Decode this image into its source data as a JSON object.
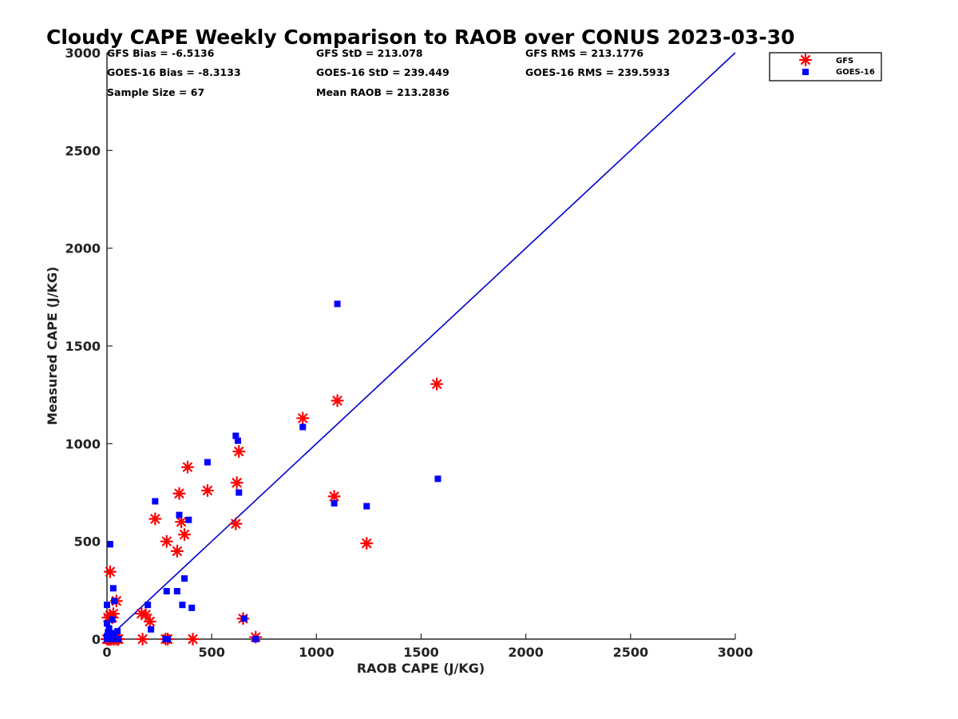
{
  "chart_data": {
    "type": "scatter",
    "title": "Cloudy CAPE Weekly Comparison to RAOB over CONUS 2023-03-30",
    "xlabel": "RAOB CAPE (J/KG)",
    "ylabel": "Measured CAPE (J/KG)",
    "xlim": [
      0,
      3000
    ],
    "ylim": [
      0,
      3000
    ],
    "xticks": [
      "0",
      "500",
      "1000",
      "1500",
      "2000",
      "2500",
      "3000"
    ],
    "yticks": [
      "0",
      "500",
      "1000",
      "1500",
      "2000",
      "2500",
      "3000"
    ],
    "grid": false,
    "legend_position": "outside-top-right",
    "stats": [
      [
        "GFS Bias = -6.5136",
        "GFS StD = 213.078",
        "GFS RMS = 213.1776"
      ],
      [
        "GOES-16 Bias = -8.3133",
        "GOES-16 StD = 239.449",
        "GOES-16 RMS = 239.5933"
      ],
      [
        "Sample Size = 67",
        "Mean RAOB = 213.2836",
        ""
      ]
    ],
    "reference_line": {
      "x": [
        0,
        3000
      ],
      "y": [
        0,
        3000
      ],
      "color": "#0000cc"
    },
    "series": [
      {
        "name": "GFS",
        "marker": "asterisk",
        "color": "#ff0000",
        "points": [
          [
            0,
            0
          ],
          [
            5,
            0
          ],
          [
            10,
            0
          ],
          [
            15,
            0
          ],
          [
            20,
            0
          ],
          [
            30,
            0
          ],
          [
            40,
            0
          ],
          [
            50,
            0
          ],
          [
            55,
            0
          ],
          [
            170,
            0
          ],
          [
            280,
            0
          ],
          [
            290,
            0
          ],
          [
            410,
            0
          ],
          [
            710,
            10
          ],
          [
            5,
            110
          ],
          [
            15,
            120
          ],
          [
            25,
            110
          ],
          [
            30,
            130
          ],
          [
            45,
            195
          ],
          [
            15,
            345
          ],
          [
            165,
            130
          ],
          [
            185,
            125
          ],
          [
            205,
            90
          ],
          [
            230,
            615
          ],
          [
            285,
            500
          ],
          [
            335,
            450
          ],
          [
            345,
            745
          ],
          [
            355,
            600
          ],
          [
            370,
            535
          ],
          [
            385,
            880
          ],
          [
            480,
            760
          ],
          [
            615,
            590
          ],
          [
            620,
            800
          ],
          [
            630,
            960
          ],
          [
            650,
            105
          ],
          [
            935,
            1130
          ],
          [
            1085,
            730
          ],
          [
            1100,
            1220
          ],
          [
            1240,
            490
          ],
          [
            1575,
            1305
          ]
        ]
      },
      {
        "name": "GOES-16",
        "marker": "square",
        "color": "#0000ff",
        "points": [
          [
            0,
            0
          ],
          [
            5,
            0
          ],
          [
            10,
            0
          ],
          [
            15,
            0
          ],
          [
            25,
            0
          ],
          [
            35,
            0
          ],
          [
            45,
            0
          ],
          [
            55,
            0
          ],
          [
            280,
            0
          ],
          [
            290,
            0
          ],
          [
            710,
            0
          ],
          [
            0,
            15
          ],
          [
            5,
            35
          ],
          [
            10,
            55
          ],
          [
            0,
            80
          ],
          [
            20,
            30
          ],
          [
            35,
            30
          ],
          [
            50,
            40
          ],
          [
            25,
            100
          ],
          [
            0,
            175
          ],
          [
            35,
            195
          ],
          [
            30,
            260
          ],
          [
            15,
            485
          ],
          [
            195,
            175
          ],
          [
            210,
            50
          ],
          [
            230,
            705
          ],
          [
            285,
            245
          ],
          [
            335,
            245
          ],
          [
            345,
            635
          ],
          [
            360,
            175
          ],
          [
            370,
            310
          ],
          [
            390,
            610
          ],
          [
            405,
            160
          ],
          [
            480,
            905
          ],
          [
            615,
            1040
          ],
          [
            625,
            1015
          ],
          [
            630,
            750
          ],
          [
            655,
            105
          ],
          [
            935,
            1085
          ],
          [
            1085,
            695
          ],
          [
            1100,
            1715
          ],
          [
            1240,
            680
          ],
          [
            1580,
            820
          ]
        ]
      }
    ]
  }
}
